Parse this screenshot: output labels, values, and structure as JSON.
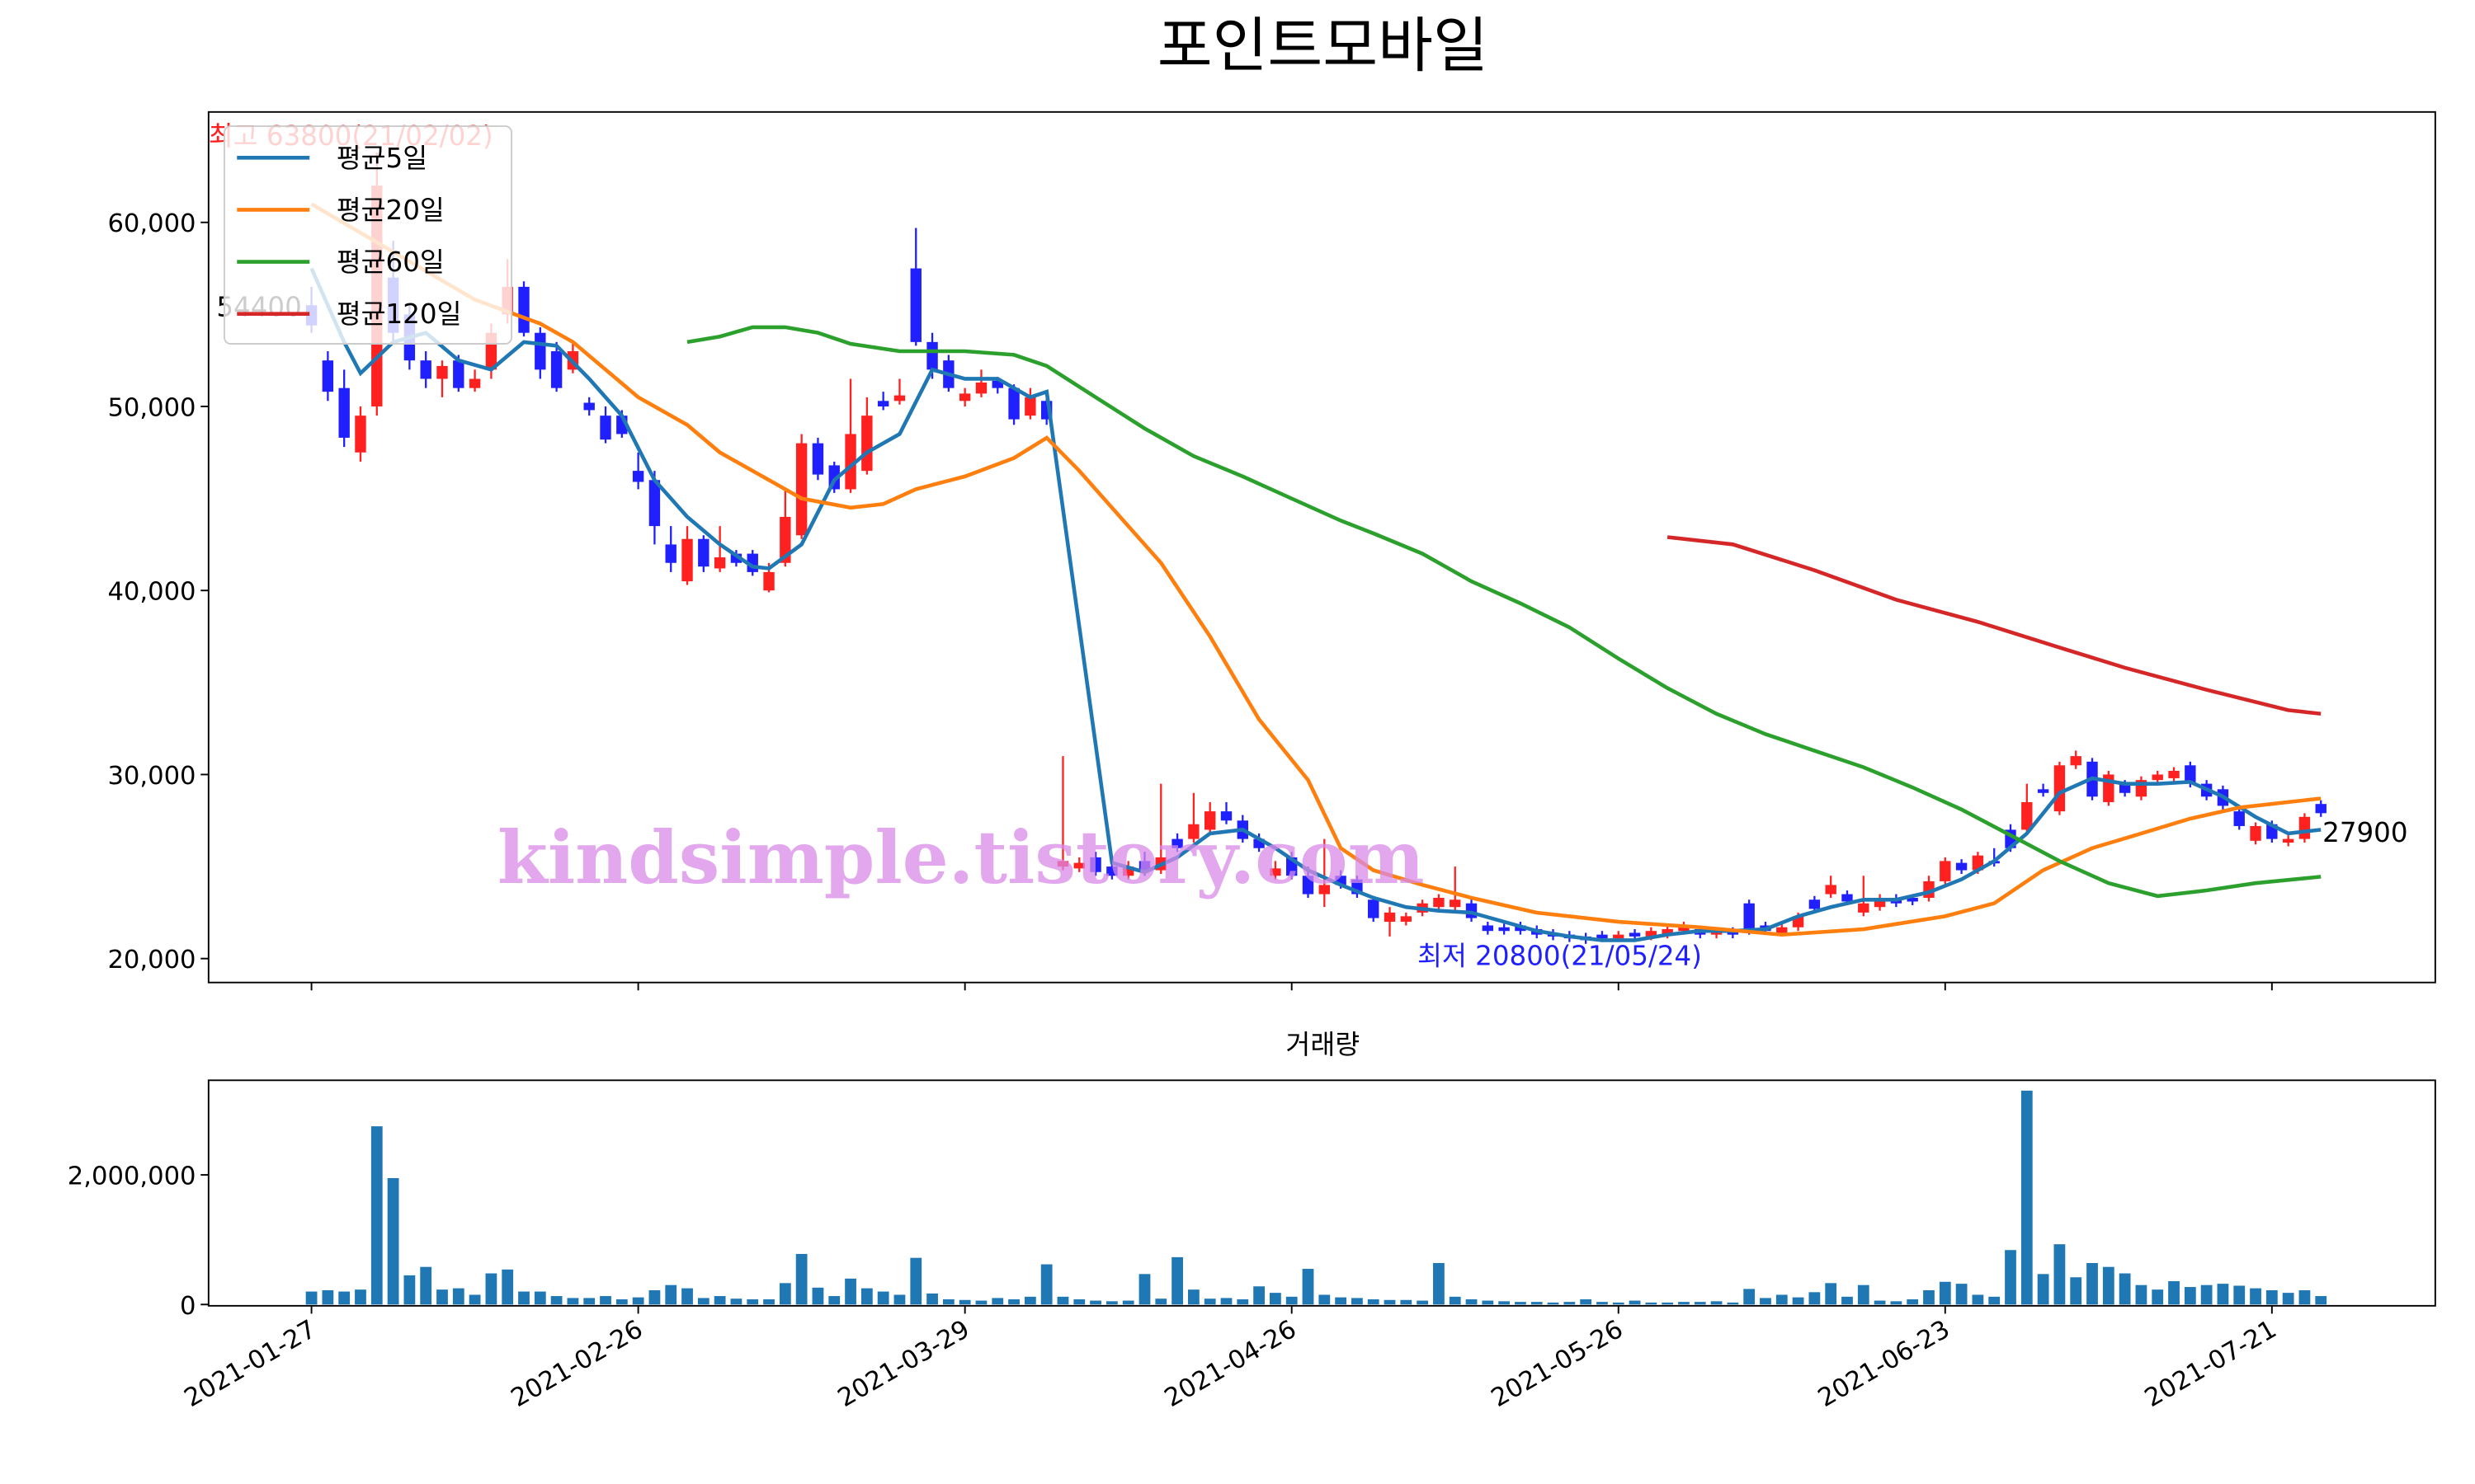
{
  "chart_data": [
    {
      "type": "candlestick",
      "title": "포인트모바일",
      "up_color": "#ff2020",
      "down_color": "#2020ff",
      "xlim": [
        -6.3,
        130
      ],
      "ylim": [
        18700,
        66000
      ],
      "yticks": [
        {
          "value": 20000,
          "label": "20,000"
        },
        {
          "value": 30000,
          "label": "30,000"
        },
        {
          "value": 40000,
          "label": "40,000"
        },
        {
          "value": 50000,
          "label": "50,000"
        },
        {
          "value": 60000,
          "label": "60,000"
        }
      ],
      "legend": "upper left",
      "annotations": {
        "high": "최고 63800(21/02/02)",
        "low": "최저 20800(21/05/24)"
      },
      "start_label": 54400,
      "end_label": 27900,
      "watermark": "kindsimple.tistory.com",
      "open": [
        55500,
        52500,
        51000,
        47500,
        50000,
        57000,
        55000,
        52500,
        51500,
        52500,
        51000,
        52000,
        55000,
        56500,
        54000,
        53000,
        52000,
        50200,
        49500,
        49500,
        46500,
        46000,
        42500,
        40500,
        42800,
        41200,
        42000,
        42000,
        40000,
        41500,
        43000,
        48000,
        46800,
        45500,
        46500,
        50300,
        50300,
        57500,
        53500,
        52500,
        50300,
        50700,
        51400,
        51000,
        49500,
        50300,
        25000,
        24900,
        25500,
        25000,
        24500,
        25300,
        24800,
        26500,
        26500,
        27000,
        28000,
        27500,
        26500,
        24500,
        25500,
        24500,
        23500,
        24500,
        24300,
        23200,
        22000,
        22000,
        22500,
        22800,
        22800,
        23000,
        21800,
        21700,
        21800,
        21600,
        21400,
        21300,
        21200,
        21300,
        21100,
        21400,
        21200,
        21300,
        21500,
        21600,
        21300,
        21500,
        23000,
        21800,
        21400,
        21700,
        23200,
        23500,
        23500,
        22500,
        22800,
        23300,
        23300,
        23300,
        24200,
        25200,
        24800,
        25300,
        27000,
        27000,
        29200,
        28000,
        30500,
        30700,
        28500,
        29500,
        28800,
        29700,
        29800,
        30500,
        29500,
        29200,
        28000,
        26400,
        27300,
        26300,
        26500,
        28400
      ],
      "high": [
        56500,
        53000,
        52000,
        50000,
        63800,
        59000,
        55500,
        53000,
        52500,
        52800,
        52000,
        54500,
        58000,
        56800,
        54300,
        53500,
        53500,
        50500,
        50000,
        49800,
        47500,
        46500,
        43500,
        43500,
        43000,
        43500,
        42200,
        42200,
        41500,
        45500,
        48500,
        48300,
        47000,
        51500,
        50500,
        50800,
        51500,
        59700,
        54000,
        52800,
        51000,
        52000,
        51600,
        51200,
        51000,
        50800,
        31000,
        25500,
        25800,
        25200,
        25300,
        25800,
        29500,
        26800,
        29000,
        28500,
        28500,
        27800,
        26800,
        25300,
        25800,
        25000,
        26500,
        24800,
        24500,
        23400,
        22800,
        22500,
        23200,
        23500,
        25000,
        23300,
        22000,
        21900,
        22000,
        21800,
        21600,
        21500,
        21400,
        21500,
        21500,
        21600,
        21700,
        21800,
        22000,
        21800,
        21700,
        21700,
        23200,
        22000,
        21900,
        22500,
        23400,
        24500,
        23700,
        24500,
        23500,
        23500,
        23500,
        24500,
        25500,
        25400,
        25800,
        26000,
        27300,
        29500,
        29500,
        30700,
        31300,
        30900,
        30200,
        29700,
        29900,
        30200,
        30400,
        30700,
        29700,
        29400,
        28200,
        27400,
        27500,
        26700,
        27900,
        28600
      ],
      "low": [
        54000,
        50300,
        47800,
        47000,
        49500,
        53500,
        52000,
        51000,
        50500,
        50800,
        50800,
        51500,
        54500,
        53800,
        51500,
        50800,
        51800,
        49500,
        48000,
        48300,
        45500,
        42500,
        41000,
        40300,
        41000,
        41000,
        41300,
        40800,
        39900,
        41300,
        42800,
        46000,
        45300,
        45300,
        46300,
        49800,
        50100,
        53300,
        51500,
        50800,
        50000,
        50500,
        50700,
        49000,
        49300,
        49000,
        24800,
        24700,
        24500,
        24300,
        24300,
        24500,
        24600,
        25800,
        26300,
        26800,
        27300,
        26300,
        25800,
        24300,
        24300,
        23300,
        22800,
        23800,
        23300,
        22000,
        21200,
        21800,
        22300,
        22600,
        22600,
        22000,
        21300,
        21300,
        21300,
        21100,
        21000,
        20900,
        20800,
        20900,
        20900,
        21000,
        21000,
        21100,
        21300,
        21100,
        21100,
        21100,
        21300,
        21300,
        21200,
        21500,
        22500,
        23300,
        22900,
        22300,
        22600,
        22800,
        22900,
        23100,
        24000,
        24600,
        24600,
        25000,
        25800,
        26800,
        28800,
        27800,
        30300,
        28600,
        28300,
        28800,
        28600,
        29500,
        29600,
        29300,
        28600,
        28100,
        27000,
        26200,
        26300,
        26100,
        26300,
        27700
      ],
      "close": [
        54400,
        50800,
        48300,
        49500,
        62000,
        54000,
        52500,
        51500,
        52200,
        51000,
        51500,
        54000,
        56500,
        54000,
        52000,
        51000,
        53000,
        49800,
        48200,
        48500,
        45900,
        43500,
        41500,
        42800,
        41300,
        41800,
        41500,
        41000,
        41000,
        44000,
        48000,
        46300,
        45500,
        48500,
        49500,
        50000,
        50600,
        53500,
        52000,
        51000,
        50700,
        51300,
        51000,
        49300,
        50500,
        49300,
        25300,
        25200,
        24700,
        24500,
        25000,
        24800,
        25500,
        26000,
        27300,
        28000,
        27500,
        26500,
        26000,
        24900,
        24500,
        23500,
        24000,
        24000,
        23500,
        22200,
        22500,
        22300,
        23000,
        23300,
        23200,
        22200,
        21500,
        21500,
        21500,
        21300,
        21200,
        21100,
        21000,
        21100,
        21300,
        21200,
        21500,
        21600,
        21800,
        21300,
        21500,
        21300,
        21500,
        21500,
        21700,
        22300,
        22700,
        24000,
        23100,
        23000,
        23300,
        23000,
        23100,
        24200,
        25300,
        24800,
        25600,
        25200,
        26000,
        28500,
        29000,
        30500,
        31000,
        28800,
        30000,
        29000,
        29700,
        30000,
        30200,
        29500,
        28800,
        28300,
        27200,
        27200,
        26500,
        26500,
        27700,
        27900
      ],
      "series": [
        {
          "name": "평균5일",
          "color": "#1f77b4",
          "x": [
            0,
            2,
            3,
            5,
            7,
            9,
            11,
            13,
            15,
            17,
            19,
            21,
            23,
            25,
            27,
            28,
            30,
            32,
            34,
            36,
            38,
            40,
            42,
            44,
            45,
            49,
            51,
            53,
            55,
            57,
            59,
            61,
            63,
            65,
            67,
            69,
            71,
            73,
            75,
            77,
            79,
            81,
            83,
            85,
            87,
            89,
            91,
            93,
            95,
            97,
            99,
            101,
            103,
            105,
            107,
            109,
            111,
            113,
            115,
            117,
            119,
            121,
            123
          ],
          "values": [
            57500,
            53500,
            51800,
            53500,
            54000,
            52500,
            52000,
            53500,
            53300,
            51500,
            49500,
            46000,
            44000,
            42500,
            41300,
            41200,
            42500,
            46000,
            47500,
            48500,
            52000,
            51500,
            51500,
            50500,
            50800,
            25200,
            24700,
            25500,
            26800,
            27000,
            26000,
            24800,
            24000,
            23300,
            22800,
            22600,
            22500,
            22000,
            21500,
            21200,
            21000,
            21000,
            21300,
            21500,
            21500,
            21600,
            22300,
            22800,
            23200,
            23200,
            23600,
            24300,
            25300,
            26800,
            29000,
            29800,
            29500,
            29500,
            29600,
            28800,
            27700,
            26800,
            27000
          ]
        },
        {
          "name": "평균20일",
          "color": "#ff7f0e",
          "x": [
            0,
            10,
            14,
            16,
            18,
            20,
            23,
            25,
            28,
            30,
            33,
            35,
            37,
            40,
            43,
            45,
            47,
            50,
            52,
            55,
            58,
            61,
            63,
            65,
            68,
            71,
            75,
            80,
            85,
            90,
            95,
            100,
            103,
            106,
            109,
            112,
            115,
            118,
            121,
            123
          ],
          "values": [
            61000,
            55800,
            54500,
            53500,
            52000,
            50500,
            49000,
            47500,
            46000,
            45000,
            44500,
            44700,
            45500,
            46200,
            47200,
            48300,
            46500,
            43500,
            41500,
            37500,
            33000,
            29700,
            26000,
            24800,
            24000,
            23300,
            22500,
            22000,
            21700,
            21300,
            21600,
            22300,
            23000,
            24800,
            26000,
            26800,
            27600,
            28200,
            28500,
            28700
          ]
        },
        {
          "name": "평균60일",
          "color": "#2ca02c",
          "x": [
            23,
            25,
            27,
            29,
            31,
            33,
            36,
            38,
            40,
            43,
            45,
            48,
            51,
            54,
            57,
            60,
            63,
            65,
            68,
            71,
            74,
            77,
            80,
            83,
            86,
            89,
            92,
            95,
            98,
            101,
            104,
            107,
            110,
            113,
            116,
            119,
            123
          ],
          "values": [
            53500,
            53800,
            54300,
            54300,
            54000,
            53400,
            53000,
            53000,
            53000,
            52800,
            52200,
            50500,
            48800,
            47300,
            46200,
            45000,
            43800,
            43100,
            42000,
            40500,
            39300,
            38000,
            36300,
            34700,
            33300,
            32200,
            31300,
            30400,
            29300,
            28100,
            26700,
            25300,
            24100,
            23400,
            23700,
            24100,
            24450
          ]
        },
        {
          "name": "평균120일",
          "color": "#d62728",
          "x": [
            83,
            87,
            92,
            97,
            102,
            107,
            111,
            116,
            121,
            123
          ],
          "values": [
            42900,
            42500,
            41100,
            39500,
            38300,
            36900,
            35800,
            34600,
            33500,
            33300
          ]
        }
      ]
    },
    {
      "type": "bar",
      "title": "거래량",
      "color": "#1f77b4",
      "xlim": [
        -6.3,
        130
      ],
      "ylim": [
        -20000,
        3460000
      ],
      "yticks": [
        0,
        {
          "value": 2000000,
          "label": "2,000,000"
        }
      ],
      "xticks": [
        {
          "value": 0,
          "label": "2021-01-27"
        },
        {
          "value": 20,
          "label": "2021-02-26"
        },
        {
          "value": 40,
          "label": "2021-03-29"
        },
        {
          "value": 60,
          "label": "2021-04-26"
        },
        {
          "value": 80,
          "label": "2021-05-26"
        },
        {
          "value": 100,
          "label": "2021-06-23"
        },
        {
          "value": 120,
          "label": "2021-07-21"
        }
      ],
      "values": [
        200000,
        220000,
        200000,
        230000,
        2750000,
        1950000,
        450000,
        580000,
        230000,
        250000,
        150000,
        480000,
        540000,
        200000,
        200000,
        130000,
        100000,
        100000,
        130000,
        80000,
        110000,
        220000,
        300000,
        250000,
        100000,
        130000,
        90000,
        80000,
        80000,
        330000,
        780000,
        260000,
        130000,
        400000,
        250000,
        200000,
        150000,
        720000,
        170000,
        80000,
        70000,
        60000,
        100000,
        80000,
        120000,
        620000,
        120000,
        80000,
        60000,
        50000,
        60000,
        470000,
        90000,
        730000,
        230000,
        90000,
        100000,
        80000,
        280000,
        180000,
        120000,
        550000,
        150000,
        110000,
        100000,
        80000,
        70000,
        70000,
        60000,
        640000,
        120000,
        80000,
        60000,
        50000,
        40000,
        40000,
        30000,
        40000,
        80000,
        40000,
        30000,
        60000,
        30000,
        30000,
        40000,
        40000,
        50000,
        30000,
        240000,
        100000,
        150000,
        110000,
        190000,
        330000,
        120000,
        300000,
        60000,
        50000,
        80000,
        220000,
        350000,
        320000,
        150000,
        120000,
        840000,
        3300000,
        470000,
        930000,
        420000,
        640000,
        580000,
        480000,
        300000,
        230000,
        360000,
        270000,
        300000,
        320000,
        290000,
        250000,
        220000,
        180000,
        220000,
        130000
      ]
    }
  ]
}
